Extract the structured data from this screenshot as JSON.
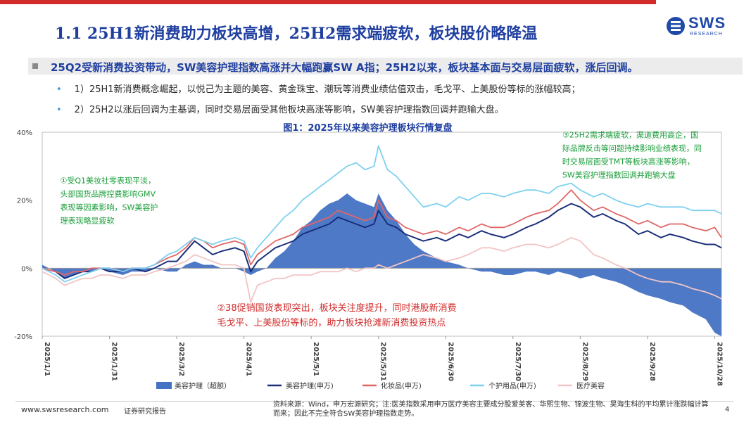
{
  "header": {
    "title": "1.1 25H1新消费助力板块高增，25H2需求端疲软，板块股价略降温",
    "logo_text": "SWS",
    "logo_sub": "RESEARCH"
  },
  "summary": {
    "headline": "25Q2受新消费投资带动，SW美容护理指数高涨并大幅跑赢SW A指；25H2以来，板块基本面与交易层面疲软，涨后回调。",
    "bullets": [
      "1）25H1新消费概念崛起，以悦己为主题的美容、黄金珠宝、潮玩等消费业绩估值双击，毛戈平、上美股份等标的涨幅较高；",
      "2）25H2以涨后回调为主基调，同时交易层面受其他板块高涨等影响，SW美容护理指数回调并跑输大盘。"
    ]
  },
  "chart_data": {
    "type": "line",
    "title": "图1：2025年以来美容护理板块行情复盘",
    "ylim": [
      -20,
      40
    ],
    "yticks": [
      "-20%",
      "0%",
      "20%",
      "40%"
    ],
    "x_ticks": [
      "2025/1/1",
      "2025/1/31",
      "2025/3/2",
      "2025/4/1",
      "2025/5/1",
      "2025/5/31",
      "2025/6/30",
      "2025/7/30",
      "2025/8/29",
      "2025/9/28",
      "2025/10/28"
    ],
    "x_tick_days": [
      0,
      30,
      60,
      90,
      120,
      150,
      180,
      210,
      240,
      270,
      300
    ],
    "series": [
      {
        "name": "美容护理（超额）",
        "kind": "area",
        "color": "#4472c4",
        "x": [
          0,
          6,
          10,
          14,
          18,
          22,
          26,
          30,
          36,
          40,
          46,
          50,
          56,
          60,
          64,
          68,
          72,
          76,
          80,
          86,
          90,
          93,
          96,
          100,
          104,
          108,
          112,
          116,
          120,
          124,
          128,
          132,
          136,
          140,
          144,
          148,
          150,
          154,
          158,
          162,
          166,
          170,
          176,
          180,
          186,
          190,
          196,
          200,
          206,
          210,
          216,
          220,
          226,
          230,
          236,
          240,
          246,
          250,
          256,
          260,
          266,
          270,
          276,
          280,
          286,
          290,
          296,
          300,
          303
        ],
        "values": [
          1,
          -1,
          -3,
          -2,
          -1,
          -1,
          0,
          -1,
          -2,
          -1,
          -1,
          0,
          -1,
          -1,
          1,
          2,
          1,
          1,
          0,
          0,
          -1,
          -2,
          -1,
          0,
          3,
          5,
          8,
          12,
          14,
          17,
          19,
          20,
          22,
          20,
          19,
          18,
          22,
          17,
          14,
          10,
          7,
          5,
          3,
          2,
          1,
          0,
          -1,
          -1,
          -2,
          -2,
          -1,
          -1,
          -2,
          -1,
          -2,
          -3,
          -2,
          -3,
          -4,
          -5,
          -7,
          -8,
          -9,
          -10,
          -11,
          -13,
          -15,
          -19,
          -20
        ]
      },
      {
        "name": "美容护理(申万)",
        "kind": "line",
        "color": "#1a2f7a",
        "x": [
          0,
          6,
          10,
          14,
          18,
          22,
          26,
          30,
          36,
          40,
          46,
          50,
          56,
          60,
          64,
          68,
          72,
          76,
          80,
          86,
          90,
          93,
          96,
          100,
          104,
          108,
          112,
          116,
          120,
          124,
          128,
          132,
          136,
          140,
          144,
          148,
          150,
          154,
          158,
          162,
          166,
          170,
          176,
          180,
          186,
          190,
          196,
          200,
          206,
          210,
          216,
          220,
          226,
          230,
          236,
          240,
          246,
          250,
          256,
          260,
          266,
          270,
          276,
          280,
          286,
          290,
          296,
          300,
          303
        ],
        "values": [
          0,
          -1,
          -3,
          -2,
          -1,
          -1,
          0,
          -1,
          -1,
          0,
          -1,
          0,
          2,
          2,
          5,
          8,
          6,
          4,
          5,
          6,
          5,
          -1,
          2,
          4,
          6,
          7,
          8,
          10,
          11,
          12,
          13,
          15,
          14,
          13,
          12,
          13,
          17,
          13,
          12,
          10,
          9,
          8,
          9,
          8,
          10,
          9,
          11,
          10,
          9,
          10,
          12,
          13,
          15,
          17,
          19,
          18,
          15,
          16,
          14,
          13,
          10,
          11,
          9,
          10,
          9,
          8,
          7,
          7,
          6
        ]
      },
      {
        "name": "化妆品(申万)",
        "kind": "line",
        "color": "#e06666",
        "x": [
          0,
          6,
          10,
          14,
          18,
          22,
          26,
          30,
          36,
          40,
          46,
          50,
          56,
          60,
          64,
          68,
          72,
          76,
          80,
          86,
          90,
          93,
          96,
          100,
          104,
          108,
          112,
          116,
          120,
          124,
          128,
          132,
          136,
          140,
          144,
          148,
          150,
          154,
          158,
          162,
          166,
          170,
          176,
          180,
          186,
          190,
          196,
          200,
          206,
          210,
          216,
          220,
          226,
          230,
          236,
          240,
          246,
          250,
          256,
          260,
          266,
          270,
          276,
          280,
          286,
          290,
          296,
          300,
          303
        ],
        "values": [
          0,
          -1,
          -2,
          -1,
          -1,
          0,
          0,
          0,
          -1,
          0,
          0,
          1,
          3,
          4,
          6,
          9,
          8,
          6,
          7,
          8,
          7,
          1,
          4,
          6,
          8,
          9,
          10,
          12,
          13,
          14,
          15,
          17,
          16,
          15,
          14,
          15,
          20,
          15,
          14,
          12,
          11,
          10,
          11,
          10,
          12,
          11,
          13,
          12,
          12,
          13,
          15,
          16,
          17,
          19,
          23,
          20,
          17,
          18,
          16,
          15,
          13,
          14,
          12,
          13,
          13,
          12,
          11,
          12,
          9
        ]
      },
      {
        "name": "个护用品(申万)",
        "kind": "line",
        "color": "#7ed0f0",
        "x": [
          0,
          6,
          10,
          14,
          18,
          22,
          26,
          30,
          36,
          40,
          46,
          50,
          56,
          60,
          64,
          68,
          72,
          76,
          80,
          86,
          90,
          93,
          96,
          100,
          104,
          108,
          112,
          116,
          120,
          124,
          128,
          132,
          136,
          140,
          144,
          148,
          150,
          154,
          158,
          162,
          166,
          170,
          176,
          180,
          186,
          190,
          196,
          200,
          206,
          210,
          216,
          220,
          226,
          230,
          236,
          240,
          246,
          250,
          256,
          260,
          266,
          270,
          276,
          280,
          286,
          290,
          296,
          300,
          303
        ],
        "values": [
          0,
          -2,
          -4,
          -3,
          -2,
          -1,
          0,
          0,
          -1,
          0,
          0,
          1,
          4,
          5,
          7,
          9,
          8,
          7,
          8,
          9,
          8,
          3,
          6,
          9,
          12,
          15,
          17,
          20,
          22,
          24,
          26,
          28,
          30,
          31,
          29,
          30,
          36,
          29,
          27,
          24,
          21,
          18,
          19,
          18,
          21,
          20,
          22,
          22,
          21,
          22,
          23,
          23,
          22,
          24,
          25,
          23,
          21,
          22,
          20,
          19,
          18,
          19,
          18,
          18,
          18,
          17,
          17,
          17,
          16
        ]
      },
      {
        "name": "医疗美容",
        "kind": "line",
        "color": "#f2c4c4",
        "x": [
          0,
          6,
          10,
          14,
          18,
          22,
          26,
          30,
          36,
          40,
          46,
          50,
          56,
          60,
          64,
          68,
          72,
          76,
          80,
          86,
          90,
          93,
          96,
          100,
          104,
          108,
          112,
          116,
          120,
          124,
          128,
          132,
          136,
          140,
          144,
          148,
          150,
          154,
          158,
          162,
          166,
          170,
          176,
          180,
          186,
          190,
          196,
          200,
          206,
          210,
          216,
          220,
          226,
          230,
          236,
          240,
          246,
          250,
          256,
          260,
          266,
          270,
          276,
          280,
          286,
          290,
          296,
          300,
          303
        ],
        "values": [
          -1,
          -3,
          -5,
          -4,
          -3,
          -3,
          -2,
          -2,
          -3,
          -2,
          -2,
          -1,
          0,
          1,
          2,
          4,
          3,
          2,
          1,
          1,
          0,
          -10,
          -5,
          -4,
          -3,
          -3,
          -2,
          -2,
          -2,
          -1,
          -1,
          -1,
          0,
          -1,
          0,
          0,
          1,
          0,
          1,
          2,
          3,
          4,
          3,
          2,
          3,
          4,
          6,
          6,
          5,
          6,
          7,
          7,
          6,
          7,
          9,
          8,
          4,
          3,
          1,
          0,
          -2,
          -3,
          -4,
          -4,
          -5,
          -6,
          -7,
          -8,
          -9
        ]
      }
    ],
    "annotations": [
      {
        "anchor_day": 8,
        "anchor_value": 25,
        "color": "#1a9e3a",
        "lines": [
          "①受Q1美妆社零表现平淡，",
          "头部国货品牌控费影响GMV",
          "表现等因素影响，SW美容护",
          "理表现略显疲软"
        ]
      },
      {
        "anchor_day": 78,
        "anchor_value": -12.5,
        "color": "#d12b2b",
        "lines": [
          "②38促销国货表现突出，板块关注度提升，同时港股新消费",
          "毛戈平、上美股份等标的，助力板块抢滩新消费投资热点"
        ]
      },
      {
        "anchor_day": 232,
        "anchor_value": 38.5,
        "color": "#1a9e3a",
        "lines": [
          "③25H2需求端疲软，渠道费用高企，国",
          "际品牌反击等问题持续影响业绩表现，同",
          "时交易层面受TMT等板块高涨等影响，",
          "SW美容护理指数回调并跑输大盘"
        ]
      }
    ]
  },
  "footer": {
    "url": "www.swsresearch.com",
    "report_type": "证券研究报告",
    "source_note": "资料来源：Wind，申万宏源研究；注:医美指数采用申万医疗美容主要成分股爱美客、华熙生物、锦波生物、昊海生科的平均累计涨跌幅计算而来；因此不完全符合SW美容护理指数走势。",
    "page": "4"
  }
}
